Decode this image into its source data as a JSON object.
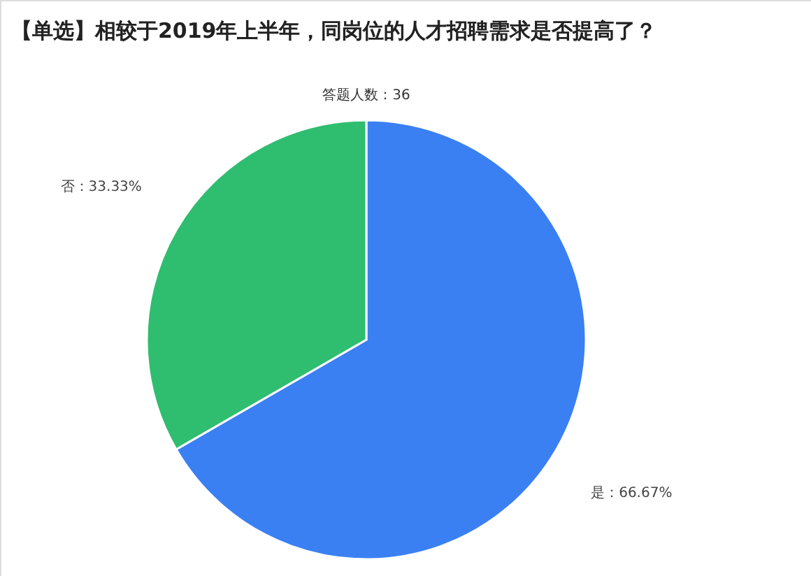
{
  "chart_data": {
    "type": "pie",
    "title": "【单选】相较于2019年上半年，同岗位的人才招聘需求是否提高了？",
    "subtitle": "答题人数：36",
    "categories": [
      "是",
      "否"
    ],
    "values": [
      66.67,
      33.33
    ],
    "colors": [
      "#3a80f2",
      "#2fbd6f"
    ],
    "value_labels": [
      "66.67%",
      "33.33%"
    ]
  }
}
